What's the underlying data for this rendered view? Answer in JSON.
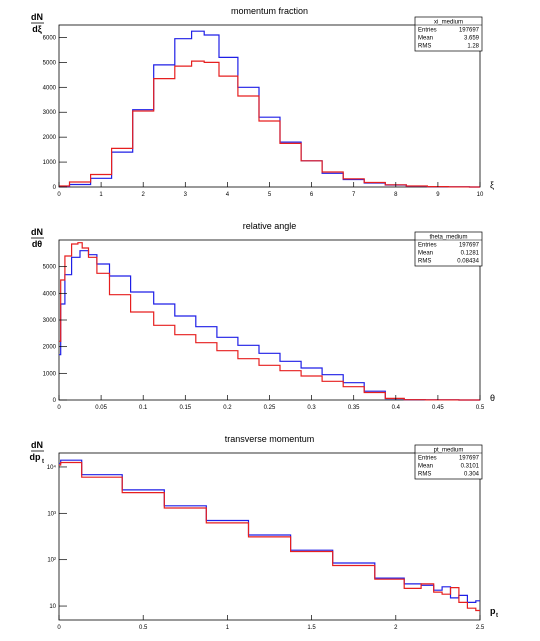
{
  "chart_data": [
    {
      "type": "line",
      "title": "momentum fraction",
      "ylabel_num": "dN",
      "ylabel_den": "dξ",
      "xlabel": "ξ",
      "xlim": [
        0,
        10
      ],
      "ylim": [
        0,
        6500
      ],
      "log_y": false,
      "x_ticks": [
        0,
        1,
        2,
        3,
        4,
        5,
        6,
        7,
        8,
        9,
        10
      ],
      "y_ticks": [
        0,
        1000,
        2000,
        3000,
        4000,
        5000,
        6000
      ],
      "stats": {
        "name": "xi_medium",
        "rows": [
          [
            "Entries",
            "197697"
          ],
          [
            "Mean",
            "3.659"
          ],
          [
            "RMS",
            "1.28"
          ]
        ]
      },
      "series": [
        {
          "color": "#1f1fe6",
          "x": [
            0,
            0.5,
            1,
            1.5,
            2,
            2.5,
            3,
            3.3,
            3.6,
            4,
            4.5,
            5,
            5.5,
            6,
            6.5,
            7,
            7.5,
            8,
            8.5,
            9,
            9.5,
            10
          ],
          "y": [
            20,
            100,
            350,
            1400,
            3100,
            4900,
            5950,
            6250,
            6100,
            5200,
            4000,
            2800,
            1800,
            1050,
            550,
            300,
            160,
            80,
            35,
            15,
            5,
            0
          ]
        },
        {
          "color": "#e61f1f",
          "x": [
            0,
            0.5,
            1,
            1.5,
            2,
            2.5,
            3,
            3.3,
            3.6,
            4,
            4.5,
            5,
            5.5,
            6,
            6.5,
            7,
            7.5,
            8,
            8.5,
            9,
            9.5,
            10
          ],
          "y": [
            40,
            200,
            500,
            1550,
            3050,
            4350,
            4850,
            5050,
            5000,
            4450,
            3650,
            2650,
            1750,
            1050,
            600,
            330,
            180,
            90,
            40,
            15,
            5,
            0
          ]
        }
      ]
    },
    {
      "type": "line",
      "title": "relative angle",
      "ylabel_num": "dN",
      "ylabel_den": "dθ",
      "xlabel": "θ",
      "xlim": [
        0,
        0.5
      ],
      "ylim": [
        0,
        6000
      ],
      "log_y": false,
      "x_ticks": [
        0,
        0.05,
        0.1,
        0.15,
        0.2,
        0.25,
        0.3,
        0.35,
        0.4,
        0.45,
        0.5
      ],
      "y_ticks": [
        0,
        1000,
        2000,
        3000,
        4000,
        5000
      ],
      "stats": {
        "name": "theta_medium",
        "rows": [
          [
            "Entries",
            "197697"
          ],
          [
            "Mean",
            "0.1281"
          ],
          [
            "RMS",
            "0.08434"
          ]
        ]
      },
      "series": [
        {
          "color": "#1f1fe6",
          "x": [
            0,
            0.004,
            0.01,
            0.02,
            0.03,
            0.04,
            0.05,
            0.07,
            0.1,
            0.125,
            0.15,
            0.175,
            0.2,
            0.225,
            0.25,
            0.275,
            0.3,
            0.325,
            0.35,
            0.375,
            0.4,
            0.42,
            0.45,
            0.5
          ],
          "y": [
            1700,
            3600,
            4700,
            5350,
            5600,
            5450,
            5100,
            4650,
            4050,
            3600,
            3150,
            2750,
            2350,
            2050,
            1750,
            1450,
            1200,
            950,
            650,
            330,
            50,
            10,
            5,
            0
          ]
        },
        {
          "color": "#e61f1f",
          "x": [
            0,
            0.004,
            0.01,
            0.02,
            0.025,
            0.03,
            0.04,
            0.05,
            0.07,
            0.1,
            0.125,
            0.15,
            0.175,
            0.2,
            0.225,
            0.25,
            0.275,
            0.3,
            0.325,
            0.35,
            0.375,
            0.4,
            0.42,
            0.45,
            0.5
          ],
          "y": [
            2200,
            4500,
            5400,
            5850,
            5900,
            5700,
            5350,
            4750,
            3950,
            3300,
            2800,
            2450,
            2150,
            1850,
            1550,
            1300,
            1100,
            900,
            700,
            500,
            280,
            60,
            10,
            5,
            0
          ]
        }
      ]
    },
    {
      "type": "line",
      "title": "transverse momentum",
      "ylabel_num": "dN",
      "ylabel_den": "dp",
      "ylabel_den_sub": "t",
      "xlabel": "p",
      "xlabel_sub": "t",
      "xlim": [
        0,
        2.5
      ],
      "ylim": [
        5,
        20000
      ],
      "log_y": true,
      "x_ticks": [
        0,
        0.5,
        1,
        1.5,
        2,
        2.5
      ],
      "y_ticks": [
        10,
        100,
        1000,
        10000
      ],
      "y_tick_labels": [
        "10",
        "10²",
        "10³",
        "10⁴"
      ],
      "stats": {
        "name": "pt_medium",
        "rows": [
          [
            "Entries",
            "197697"
          ],
          [
            "Mean",
            "0.3101"
          ],
          [
            "RMS",
            "0.304"
          ]
        ]
      },
      "series": [
        {
          "color": "#1f1fe6",
          "x": [
            0,
            0.02,
            0.25,
            0.5,
            0.75,
            1,
            1.25,
            1.5,
            1.75,
            2,
            2.1,
            2.2,
            2.25,
            2.3,
            2.35,
            2.4,
            2.45,
            2.5
          ],
          "y": [
            12000,
            14000,
            6800,
            3200,
            1450,
            700,
            340,
            160,
            85,
            40,
            30,
            28,
            22,
            26,
            15,
            17,
            12,
            13
          ]
        },
        {
          "color": "#e61f1f",
          "x": [
            0,
            0.02,
            0.25,
            0.5,
            0.75,
            1,
            1.25,
            1.5,
            1.75,
            2,
            2.1,
            2.2,
            2.25,
            2.3,
            2.35,
            2.4,
            2.45,
            2.5
          ],
          "y": [
            11000,
            12500,
            6000,
            2800,
            1300,
            620,
            310,
            150,
            75,
            38,
            24,
            30,
            20,
            18,
            25,
            12,
            9,
            8
          ]
        }
      ]
    }
  ]
}
